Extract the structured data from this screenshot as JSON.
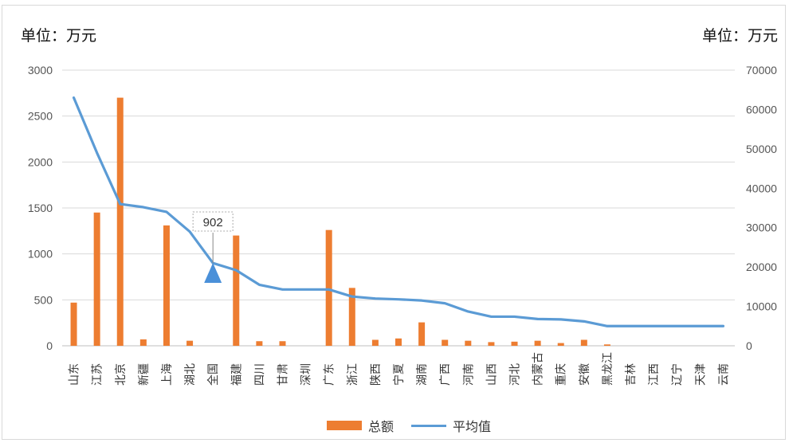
{
  "units": {
    "left": "单位：万元",
    "right": "单位：万元"
  },
  "legend": {
    "bar": "总额",
    "line": "平均值"
  },
  "colors": {
    "bar": "#ed7d31",
    "line": "#5b9bd5",
    "annotation_arrow": "#4a90d9"
  },
  "annotation": {
    "text": "902",
    "category": "全国"
  },
  "chart_data": {
    "type": "bar",
    "categories": [
      "山东",
      "江苏",
      "北京",
      "新疆",
      "上海",
      "湖北",
      "全国",
      "福建",
      "四川",
      "甘肃",
      "深圳",
      "广东",
      "浙江",
      "陕西",
      "宁夏",
      "湖南",
      "广西",
      "河南",
      "山西",
      "河北",
      "内蒙古",
      "重庆",
      "安徽",
      "黑龙江",
      "吉林",
      "江西",
      "辽宁",
      "天津",
      "云南"
    ],
    "series": [
      {
        "name": "总额",
        "axis": "left",
        "type": "bar",
        "values": [
          470,
          1450,
          2700,
          70,
          1310,
          55,
          0,
          1200,
          50,
          50,
          0,
          1260,
          630,
          65,
          80,
          255,
          65,
          55,
          40,
          45,
          55,
          30,
          65,
          15,
          0,
          0,
          0,
          0,
          0
        ]
      },
      {
        "name": "平均值",
        "axis": "right",
        "type": "line",
        "values": [
          63000,
          49000,
          36000,
          35200,
          34000,
          29000,
          21000,
          19200,
          15500,
          14300,
          14300,
          14300,
          12500,
          12000,
          11800,
          11500,
          10800,
          8700,
          7400,
          7400,
          6800,
          6700,
          6200,
          5000,
          5000,
          5000,
          5000,
          5000,
          5000
        ]
      }
    ],
    "y_left": {
      "min": 0,
      "max": 3000,
      "ticks": [
        0,
        500,
        1000,
        1500,
        2000,
        2500,
        3000
      ]
    },
    "y_right": {
      "min": 0,
      "max": 70000,
      "ticks": [
        0,
        10000,
        20000,
        30000,
        40000,
        50000,
        60000,
        70000
      ]
    },
    "grid": true,
    "legend_position": "bottom"
  }
}
